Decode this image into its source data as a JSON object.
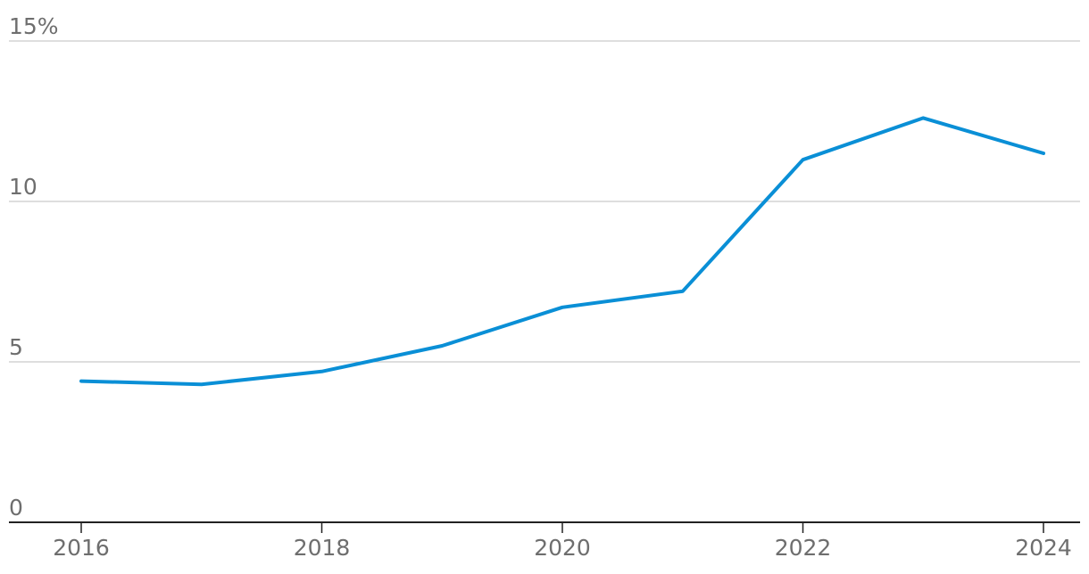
{
  "chart_data": {
    "type": "line",
    "title": "",
    "xlabel": "",
    "ylabel": "",
    "x": [
      2016,
      2017,
      2018,
      2019,
      2020,
      2021,
      2022,
      2023,
      2024
    ],
    "series": [
      {
        "color": "#0a8fd6",
        "values": [
          4.4,
          4.3,
          4.7,
          5.5,
          6.7,
          7.2,
          11.3,
          12.6,
          11.5
        ]
      }
    ],
    "ylim": [
      0,
      15
    ],
    "xlim": [
      2016,
      2024
    ],
    "y_ticks": [
      {
        "value": 0,
        "label": "0"
      },
      {
        "value": 5,
        "label": "5"
      },
      {
        "value": 10,
        "label": "10"
      },
      {
        "value": 15,
        "label": "15%"
      }
    ],
    "x_ticks": [
      {
        "value": 2016,
        "label": "2016"
      },
      {
        "value": 2018,
        "label": "2018"
      },
      {
        "value": 2020,
        "label": "2020"
      },
      {
        "value": 2022,
        "label": "2022"
      },
      {
        "value": 2024,
        "label": "2024"
      }
    ],
    "grid": true,
    "legend": "none"
  }
}
